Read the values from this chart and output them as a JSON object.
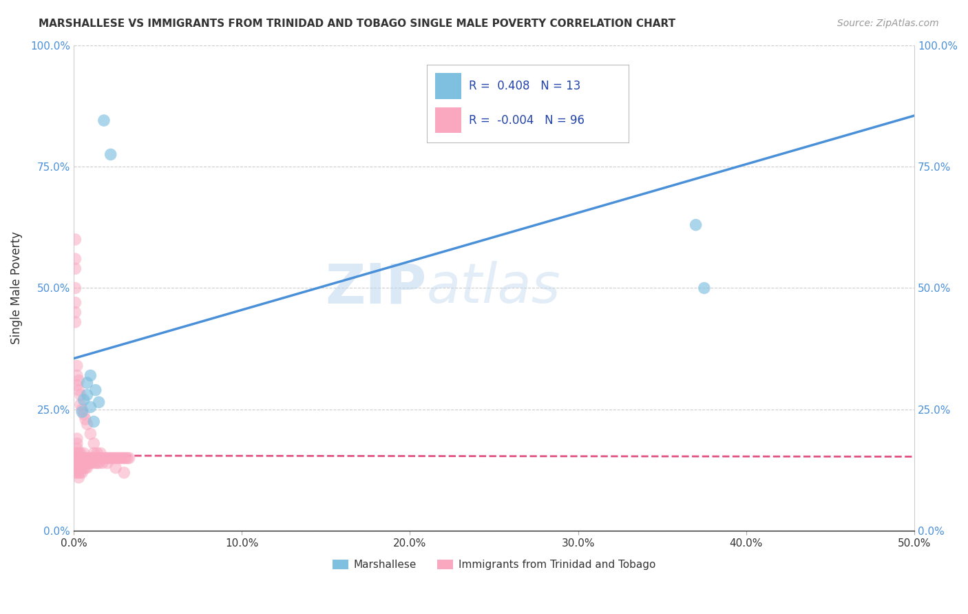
{
  "title": "MARSHALLESE VS IMMIGRANTS FROM TRINIDAD AND TOBAGO SINGLE MALE POVERTY CORRELATION CHART",
  "source": "Source: ZipAtlas.com",
  "xlabel_blue": "Marshallese",
  "xlabel_pink": "Immigrants from Trinidad and Tobago",
  "ylabel": "Single Male Poverty",
  "r_blue": 0.408,
  "n_blue": 13,
  "r_pink": -0.004,
  "n_pink": 96,
  "blue_color": "#7fbfdf",
  "pink_color": "#f9a8c0",
  "blue_line_color": "#4a90d9",
  "pink_line_color": "#e05080",
  "xlim": [
    0.0,
    0.5
  ],
  "ylim": [
    0.0,
    1.0
  ],
  "xtick_positions": [
    0.0,
    0.1,
    0.2,
    0.3,
    0.4,
    0.5
  ],
  "xtick_labels": [
    "0.0%",
    "10.0%",
    "20.0%",
    "30.0%",
    "40.0%",
    "50.0%"
  ],
  "ytick_positions": [
    0.0,
    0.25,
    0.5,
    0.75,
    1.0
  ],
  "ytick_labels": [
    "0.0%",
    "25.0%",
    "50.0%",
    "75.0%",
    "100.0%"
  ],
  "blue_scatter_x": [
    0.018,
    0.022,
    0.01,
    0.013,
    0.015,
    0.008,
    0.006,
    0.005,
    0.008,
    0.01,
    0.012,
    0.37,
    0.375
  ],
  "blue_scatter_y": [
    0.845,
    0.775,
    0.32,
    0.29,
    0.265,
    0.305,
    0.27,
    0.245,
    0.28,
    0.255,
    0.225,
    0.63,
    0.5
  ],
  "pink_scatter_x": [
    0.001,
    0.001,
    0.001,
    0.001,
    0.001,
    0.002,
    0.002,
    0.002,
    0.002,
    0.002,
    0.002,
    0.002,
    0.002,
    0.003,
    0.003,
    0.003,
    0.003,
    0.003,
    0.003,
    0.004,
    0.004,
    0.004,
    0.004,
    0.004,
    0.005,
    0.005,
    0.005,
    0.005,
    0.006,
    0.006,
    0.006,
    0.006,
    0.007,
    0.007,
    0.007,
    0.008,
    0.008,
    0.008,
    0.009,
    0.009,
    0.01,
    0.01,
    0.011,
    0.011,
    0.012,
    0.012,
    0.013,
    0.013,
    0.014,
    0.014,
    0.015,
    0.015,
    0.016,
    0.016,
    0.017,
    0.017,
    0.018,
    0.019,
    0.02,
    0.021,
    0.022,
    0.023,
    0.024,
    0.025,
    0.026,
    0.027,
    0.028,
    0.029,
    0.03,
    0.031,
    0.032,
    0.033,
    0.001,
    0.001,
    0.001,
    0.001,
    0.001,
    0.001,
    0.001,
    0.002,
    0.002,
    0.002,
    0.003,
    0.003,
    0.004,
    0.004,
    0.005,
    0.006,
    0.007,
    0.008,
    0.01,
    0.012,
    0.014,
    0.02,
    0.025,
    0.03
  ],
  "pink_scatter_y": [
    0.15,
    0.14,
    0.13,
    0.12,
    0.16,
    0.15,
    0.14,
    0.16,
    0.17,
    0.18,
    0.19,
    0.13,
    0.12,
    0.15,
    0.16,
    0.14,
    0.13,
    0.12,
    0.11,
    0.15,
    0.16,
    0.14,
    0.13,
    0.12,
    0.15,
    0.14,
    0.13,
    0.12,
    0.15,
    0.16,
    0.14,
    0.13,
    0.15,
    0.14,
    0.13,
    0.15,
    0.14,
    0.13,
    0.15,
    0.14,
    0.15,
    0.14,
    0.15,
    0.14,
    0.15,
    0.16,
    0.15,
    0.14,
    0.15,
    0.14,
    0.15,
    0.14,
    0.15,
    0.16,
    0.15,
    0.14,
    0.15,
    0.15,
    0.15,
    0.15,
    0.15,
    0.15,
    0.15,
    0.15,
    0.15,
    0.15,
    0.15,
    0.15,
    0.15,
    0.15,
    0.15,
    0.15,
    0.43,
    0.45,
    0.54,
    0.56,
    0.6,
    0.47,
    0.5,
    0.3,
    0.32,
    0.34,
    0.29,
    0.31,
    0.28,
    0.26,
    0.25,
    0.24,
    0.23,
    0.22,
    0.2,
    0.18,
    0.16,
    0.14,
    0.13,
    0.12
  ],
  "blue_line_x0": 0.0,
  "blue_line_y0": 0.355,
  "blue_line_x1": 0.5,
  "blue_line_y1": 0.855,
  "pink_line_x0": 0.0,
  "pink_line_y0": 0.155,
  "pink_line_x1": 0.5,
  "pink_line_y1": 0.153,
  "background_color": "#ffffff",
  "grid_color": "#cccccc",
  "watermark_zip": "ZIP",
  "watermark_atlas": "atlas",
  "legend_color": "#2244aa"
}
